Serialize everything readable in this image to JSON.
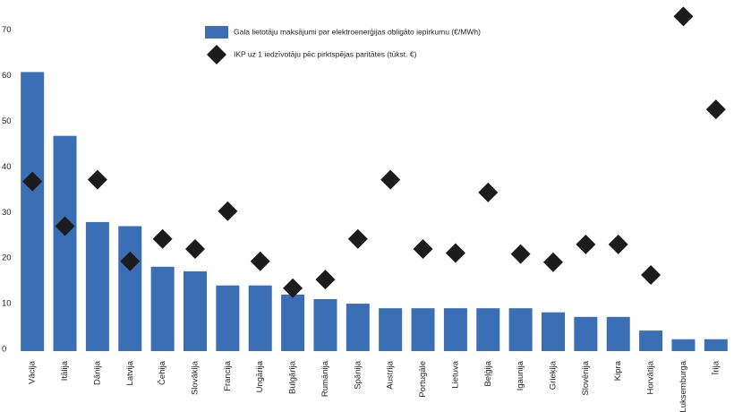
{
  "chart_data": {
    "type": "bar",
    "categories": [
      "Vācija",
      "Itālija",
      "Dānija",
      "Latvija",
      "Čehija",
      "Slovākija",
      "Francija",
      "Ungārija",
      "Bulgārija",
      "Rumānija",
      "Spānija",
      "Austrija",
      "Portugāle",
      "Lietuva",
      "Beļģija",
      "Igaunija",
      "Grieķija",
      "Slovēnija",
      "Kipra",
      "Horvātija",
      "Luksemburga",
      "Īrija"
    ],
    "series": [
      {
        "name": "Gala lietotāju maksājumi par elektroenerģijas obligāto iepirkumu (€/MWh)",
        "type": "bar",
        "color": "#3a6eb5",
        "values": [
          61.2,
          47.2,
          28.3,
          27.4,
          18.5,
          17.5,
          14.4,
          14.4,
          12.4,
          11.4,
          10.4,
          9.4,
          9.4,
          9.4,
          9.4,
          9.4,
          8.5,
          7.5,
          7.5,
          4.5,
          2.6,
          2.6
        ]
      },
      {
        "name": "IKP uz 1 iedzīvotāju pēc pirktspējas paritātes (tūkst. €)",
        "type": "scatter",
        "color": "#1c1c1c",
        "values": [
          37.2,
          27.4,
          37.6,
          19.7,
          24.6,
          22.4,
          30.7,
          19.7,
          13.8,
          15.7,
          24.6,
          37.6,
          22.4,
          21.5,
          34.8,
          21.3,
          19.5,
          23.4,
          23.4,
          16.7,
          73.4,
          53
        ]
      }
    ],
    "ylim": [
      0,
      77
    ],
    "yticks": [
      0,
      10,
      20,
      30,
      40,
      50,
      60,
      70
    ],
    "grid": false
  }
}
